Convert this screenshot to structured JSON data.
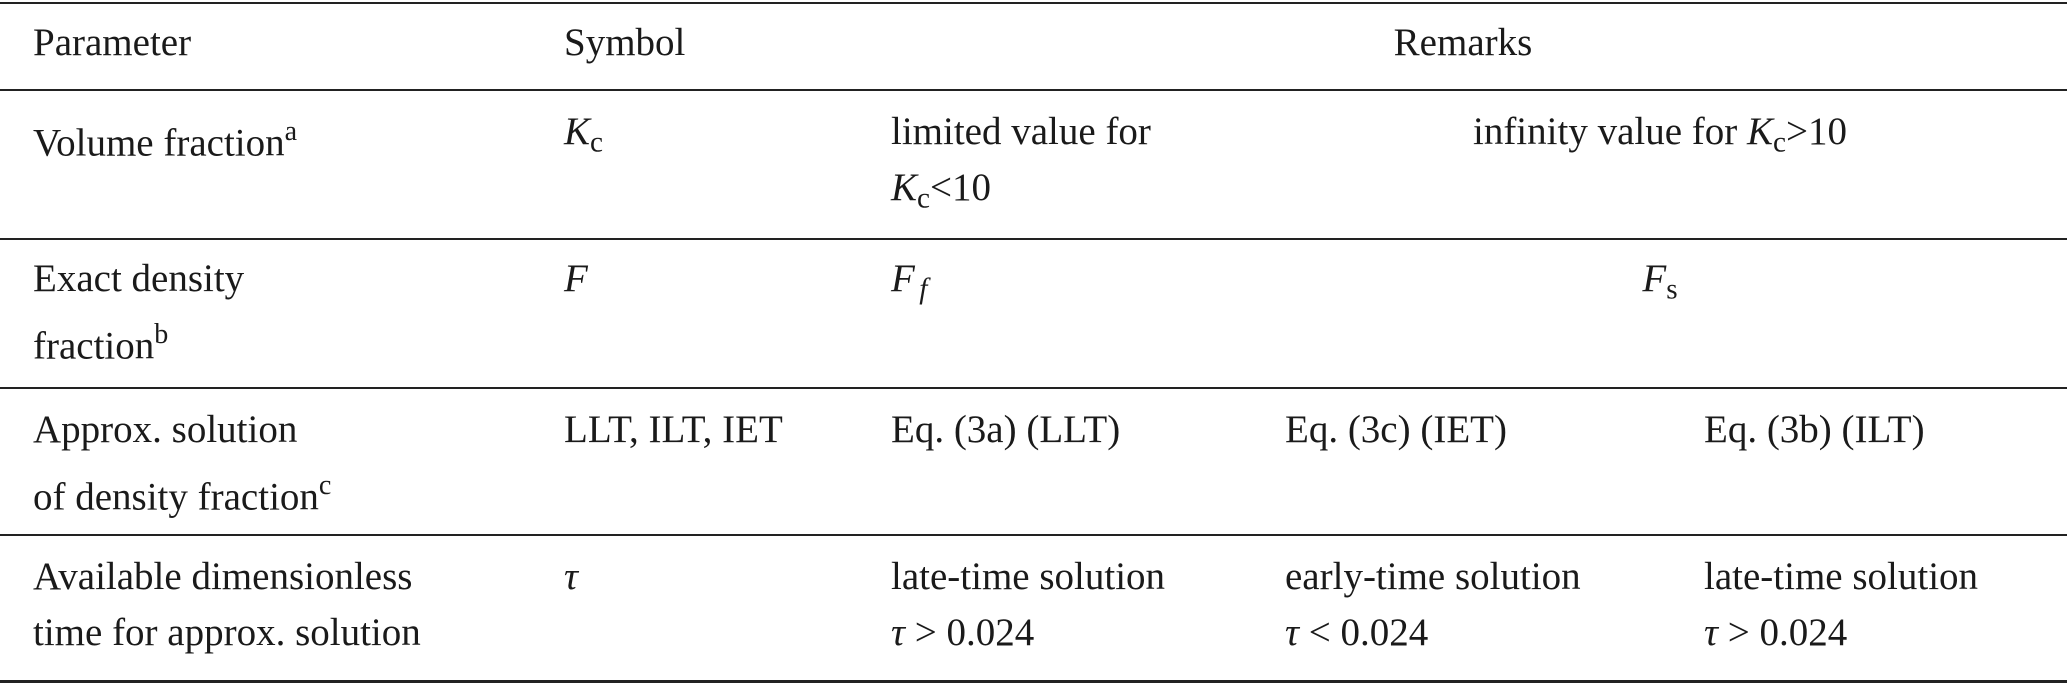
{
  "table": {
    "header": [
      "Parameter",
      "Symbol",
      "Remarks"
    ],
    "rows": [
      {
        "parameter": [
          "Volume fraction",
          "a"
        ],
        "symbol": [
          "K",
          "c"
        ],
        "remarks": [
          [
            "limited value for",
            "K",
            "c",
            "<10"
          ],
          [
            "infinity value for",
            "K",
            "c",
            ">10"
          ]
        ]
      },
      {
        "parameter": [
          "Exact density",
          "fraction",
          "b"
        ],
        "symbol": [
          "F"
        ],
        "remarks": [
          [
            "F",
            "f"
          ],
          [
            "F",
            "s"
          ]
        ]
      },
      {
        "parameter": [
          "Approx. solution",
          "of density fraction",
          "c"
        ],
        "symbol": [
          "LLT, ILT, IET"
        ],
        "remarks": [
          [
            "Eq. (3a) (LLT)"
          ],
          [
            "Eq. (3c) (IET)"
          ],
          [
            "Eq. (3b) (ILT)"
          ]
        ]
      },
      {
        "parameter": [
          "Available dimensionless",
          "time for approx. solution"
        ],
        "symbol": [
          "τ"
        ],
        "remarks": [
          [
            "late-time solution",
            "τ",
            "> 0.024"
          ],
          [
            "early-time solution",
            "τ",
            "< 0.024"
          ],
          [
            "late-time solution",
            "τ",
            "> 0.024"
          ]
        ]
      }
    ]
  }
}
